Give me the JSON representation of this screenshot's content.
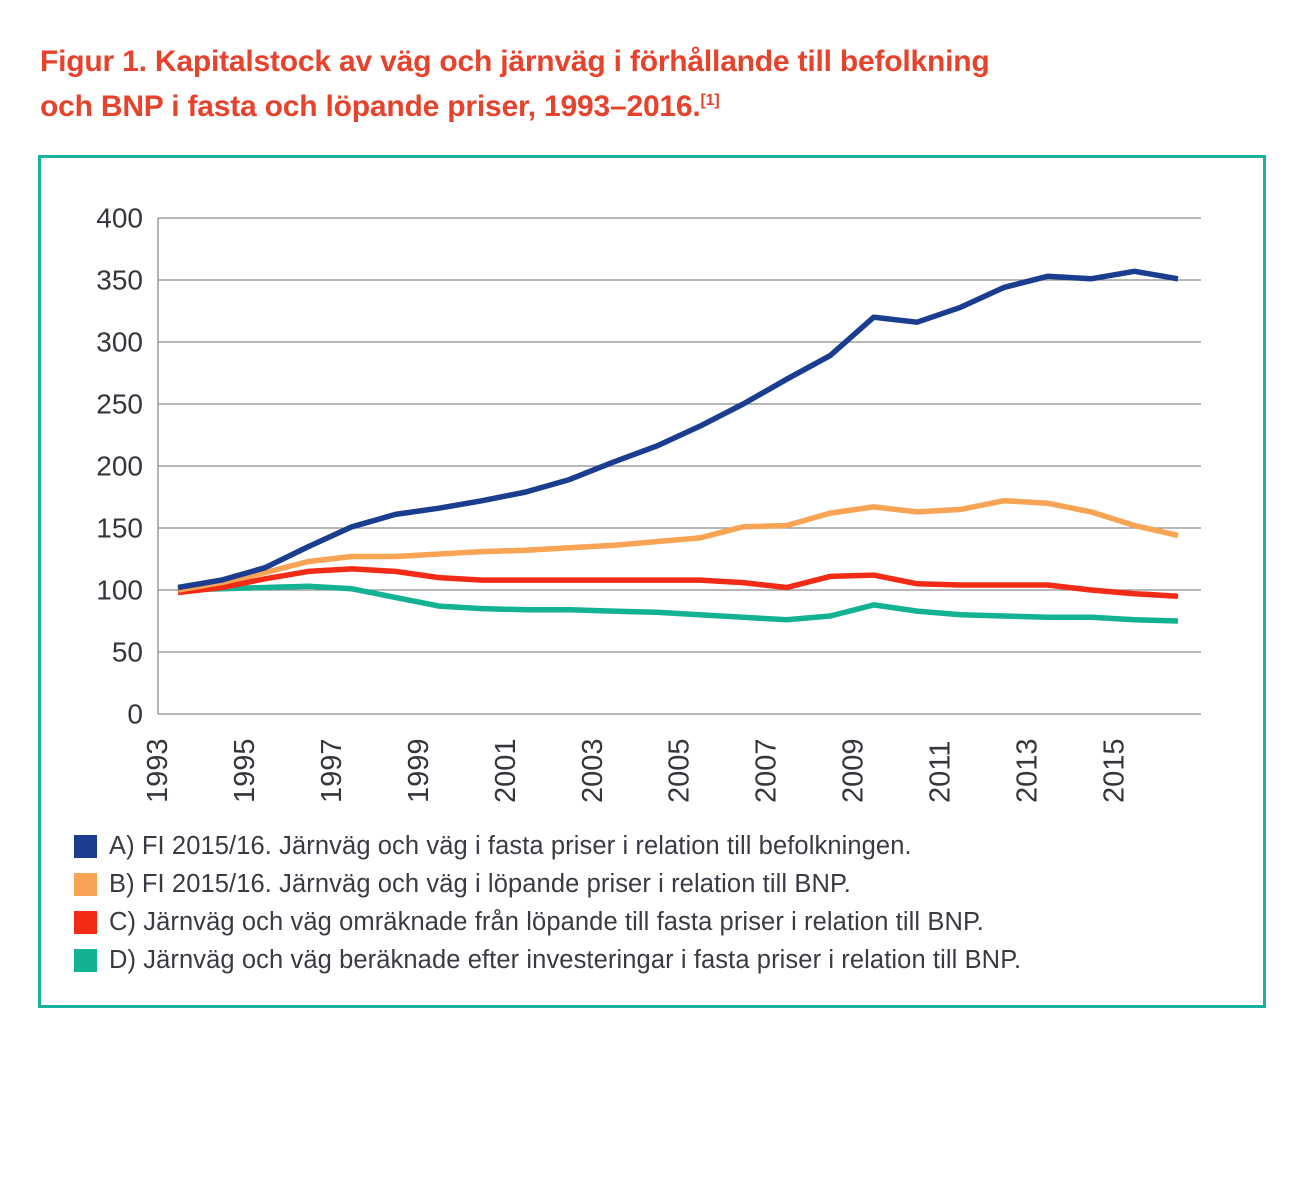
{
  "page": {
    "title_line1": "Figur 1. Kapitalstock av väg och järnväg i förhållande till befolkning",
    "title_line2": "och BNP i fasta och löpande priser, 1993–2016.",
    "title_sup": "[1]"
  },
  "colors": {
    "title_red": "#e7422c",
    "box_border_teal": "#16b29c",
    "axis_text": "#35353e",
    "gridline_gray": "#8c8c8c",
    "legend_text": "#3a3a44"
  },
  "chart_data": {
    "type": "line",
    "title": "",
    "xlabel": "",
    "ylabel": "",
    "x": [
      1993,
      1994,
      1995,
      1996,
      1997,
      1998,
      1999,
      2000,
      2001,
      2002,
      2003,
      2004,
      2005,
      2006,
      2007,
      2008,
      2009,
      2010,
      2011,
      2012,
      2013,
      2014,
      2015,
      2016
    ],
    "x_tick_labels": [
      "1993",
      "1995",
      "1997",
      "1999",
      "2001",
      "2003",
      "2005",
      "2007",
      "2009",
      "2011",
      "2013",
      "2015"
    ],
    "ylim": [
      0,
      400
    ],
    "y_ticks": [
      0,
      50,
      100,
      150,
      200,
      250,
      300,
      350,
      400
    ],
    "grid": true,
    "legend_position": "bottom",
    "series": [
      {
        "name": "A",
        "label": "A) FI 2015/16. Järnväg och väg i fasta priser i relation till befolkningen.",
        "color": "#1a3d8f",
        "values": [
          102,
          108,
          118,
          135,
          151,
          161,
          166,
          172,
          179,
          189,
          203,
          216,
          232,
          250,
          270,
          289,
          320,
          316,
          328,
          344,
          353,
          351,
          357,
          351
        ]
      },
      {
        "name": "B",
        "label": "B) FI 2015/16. Järnväg och väg i löpande priser i relation till BNP.",
        "color": "#f9a354",
        "values": [
          100,
          106,
          114,
          123,
          127,
          127,
          129,
          131,
          132,
          134,
          136,
          139,
          142,
          151,
          152,
          162,
          167,
          163,
          165,
          172,
          170,
          163,
          152,
          144
        ]
      },
      {
        "name": "C",
        "label": "C) Järnväg och väg omräknade från löpande till fasta priser i relation till BNP.",
        "color": "#f22b17",
        "values": [
          98,
          102,
          109,
          115,
          117,
          115,
          110,
          108,
          108,
          108,
          108,
          108,
          108,
          106,
          102,
          111,
          112,
          105,
          104,
          104,
          104,
          100,
          97,
          95
        ]
      },
      {
        "name": "D",
        "label": "D) Järnväg och väg beräknade efter investeringar i fasta priser i relation till BNP.",
        "color": "#12b293",
        "values": [
          100,
          101,
          102,
          103,
          101,
          94,
          87,
          85,
          84,
          84,
          83,
          82,
          80,
          78,
          76,
          79,
          88,
          83,
          80,
          79,
          78,
          78,
          76,
          75
        ]
      }
    ]
  }
}
